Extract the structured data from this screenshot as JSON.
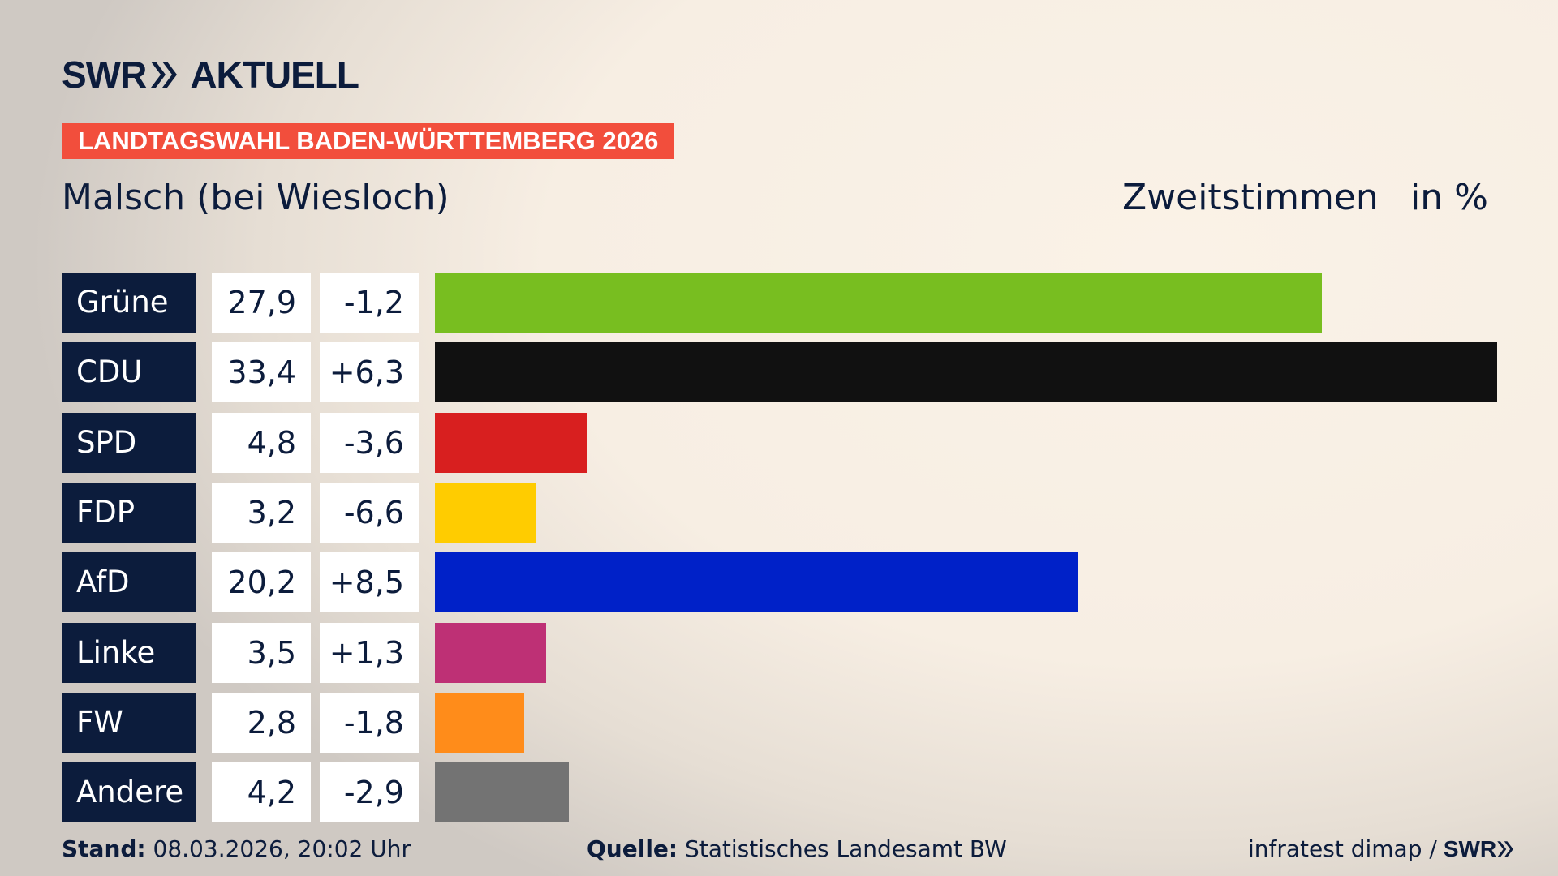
{
  "brand": {
    "logo_text": "SWR",
    "logo_suffix": "AKTUELL"
  },
  "banner": "LANDTAGSWAHL BADEN-WÜRTTEMBERG 2026",
  "colors": {
    "navy": "#0c1c3c",
    "banner": "#f24e3c"
  },
  "chart_data": {
    "type": "bar",
    "orientation": "horizontal",
    "title": "Malsch (bei Wiesloch)",
    "measure": "Zweitstimmen",
    "unit": "in %",
    "categories": [
      "Grüne",
      "CDU",
      "SPD",
      "FDP",
      "AfD",
      "Linke",
      "FW",
      "Andere"
    ],
    "values": [
      27.9,
      33.4,
      4.8,
      3.2,
      20.2,
      3.5,
      2.8,
      4.2
    ],
    "value_labels": [
      "27,9",
      "33,4",
      "4,8",
      "3,2",
      "20,2",
      "3,5",
      "2,8",
      "4,2"
    ],
    "diff_labels": [
      "-1,2",
      "+6,3",
      "-3,6",
      "-6,6",
      "+8,5",
      "+1,3",
      "-1,8",
      "-2,9"
    ],
    "diffs": [
      -1.2,
      6.3,
      -3.6,
      -6.6,
      8.5,
      1.3,
      -1.8,
      -2.9
    ],
    "colors": [
      "#78be20",
      "#111111",
      "#d81f1f",
      "#ffcc00",
      "#0021c8",
      "#be3075",
      "#ff8c1a",
      "#737373"
    ],
    "xlim": [
      0,
      33.4
    ]
  },
  "footer": {
    "stand_label": "Stand:",
    "stand_value": "08.03.2026, 20:02 Uhr",
    "source_label": "Quelle:",
    "source_value": "Statistisches Landesamt BW",
    "credit": "infratest dimap /",
    "credit_brand": "SWR"
  }
}
